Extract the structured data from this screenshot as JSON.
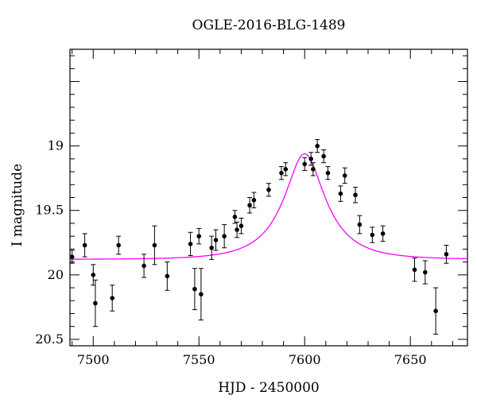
{
  "chart_data": {
    "type": "scatter",
    "title": "OGLE-2016-BLG-1489",
    "xlabel": "HJD - 2450000",
    "ylabel": "I magnitude",
    "xlim": [
      7489,
      7677
    ],
    "ylim": [
      20.55,
      18.25
    ],
    "y_inverted": true,
    "x_ticks": [
      7500,
      7550,
      7600,
      7650
    ],
    "y_ticks": [
      19,
      19.5,
      20,
      20.5
    ],
    "model_color": "#ff00ff",
    "point_color": "#000000",
    "model": {
      "t0": 7600,
      "mag_peak": 19.06,
      "mag_base": 19.88,
      "tE": 22,
      "u0": 0.45
    },
    "series": [
      {
        "points": [
          {
            "x": 7490,
            "y": 19.86,
            "err": 0.05
          },
          {
            "x": 7496,
            "y": 19.77,
            "err": 0.09
          },
          {
            "x": 7500,
            "y": 20.0,
            "err": 0.08
          },
          {
            "x": 7501,
            "y": 20.22,
            "err": 0.18
          },
          {
            "x": 7509,
            "y": 20.18,
            "err": 0.1
          },
          {
            "x": 7512,
            "y": 19.77,
            "err": 0.07
          },
          {
            "x": 7524,
            "y": 19.93,
            "err": 0.09
          },
          {
            "x": 7529,
            "y": 19.77,
            "err": 0.15
          },
          {
            "x": 7535,
            "y": 20.01,
            "err": 0.11
          },
          {
            "x": 7546,
            "y": 19.76,
            "err": 0.09
          },
          {
            "x": 7548,
            "y": 20.11,
            "err": 0.16
          },
          {
            "x": 7550,
            "y": 19.7,
            "err": 0.06
          },
          {
            "x": 7551,
            "y": 20.15,
            "err": 0.2
          },
          {
            "x": 7556,
            "y": 19.79,
            "err": 0.09
          },
          {
            "x": 7558,
            "y": 19.73,
            "err": 0.08
          },
          {
            "x": 7562,
            "y": 19.7,
            "err": 0.09
          },
          {
            "x": 7567,
            "y": 19.55,
            "err": 0.05
          },
          {
            "x": 7568,
            "y": 19.65,
            "err": 0.06
          },
          {
            "x": 7570,
            "y": 19.62,
            "err": 0.06
          },
          {
            "x": 7574,
            "y": 19.46,
            "err": 0.06
          },
          {
            "x": 7576,
            "y": 19.42,
            "err": 0.06
          },
          {
            "x": 7583,
            "y": 19.34,
            "err": 0.05
          },
          {
            "x": 7589,
            "y": 19.21,
            "err": 0.05
          },
          {
            "x": 7591,
            "y": 19.18,
            "err": 0.05
          },
          {
            "x": 7600,
            "y": 19.14,
            "err": 0.05
          },
          {
            "x": 7603,
            "y": 19.1,
            "err": 0.05
          },
          {
            "x": 7604,
            "y": 19.18,
            "err": 0.05
          },
          {
            "x": 7606,
            "y": 19.0,
            "err": 0.05
          },
          {
            "x": 7609,
            "y": 19.08,
            "err": 0.05
          },
          {
            "x": 7611,
            "y": 19.21,
            "err": 0.05
          },
          {
            "x": 7617,
            "y": 19.37,
            "err": 0.06
          },
          {
            "x": 7619,
            "y": 19.23,
            "err": 0.06
          },
          {
            "x": 7624,
            "y": 19.38,
            "err": 0.06
          },
          {
            "x": 7626,
            "y": 19.61,
            "err": 0.07
          },
          {
            "x": 7632,
            "y": 19.69,
            "err": 0.06
          },
          {
            "x": 7637,
            "y": 19.68,
            "err": 0.06
          },
          {
            "x": 7652,
            "y": 19.96,
            "err": 0.09
          },
          {
            "x": 7657,
            "y": 19.98,
            "err": 0.09
          },
          {
            "x": 7662,
            "y": 20.28,
            "err": 0.18
          },
          {
            "x": 7667,
            "y": 19.84,
            "err": 0.07
          }
        ]
      }
    ]
  }
}
